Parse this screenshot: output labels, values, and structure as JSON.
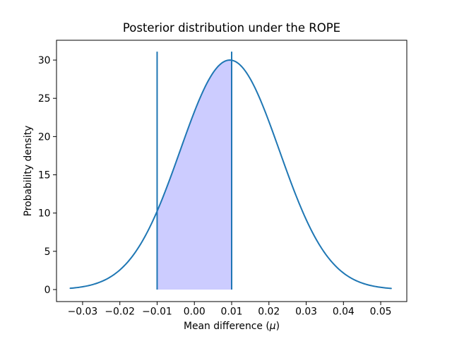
{
  "figure": {
    "title": "Posterior distribution under the ROPE",
    "xlabel_parts": [
      "Mean difference (",
      "μ",
      ")"
    ],
    "ylabel": "Probability density"
  },
  "chart_data": {
    "type": "line",
    "title": "Posterior distribution under the ROPE",
    "xlabel": "Mean difference (μ)",
    "ylabel": "Probability density",
    "grid": false,
    "legend_position": "none",
    "xlim": [
      -0.037,
      0.057
    ],
    "ylim": [
      -1.57,
      32.59
    ],
    "x_ticks": [
      -0.03,
      -0.02,
      -0.01,
      0.0,
      0.01,
      0.02,
      0.03,
      0.04,
      0.05
    ],
    "x_tick_labels": [
      "−0.03",
      "−0.02",
      "−0.01",
      "0.00",
      "0.01",
      "0.02",
      "0.03",
      "0.04",
      "0.05"
    ],
    "y_ticks": [
      0,
      5,
      10,
      15,
      20,
      25,
      30
    ],
    "y_tick_labels": [
      "0",
      "5",
      "10",
      "15",
      "20",
      "25",
      "30"
    ],
    "series": [
      {
        "name": "posterior-density",
        "type": "line",
        "color": "#1f77b4",
        "line_width": 2,
        "distribution": "normal",
        "mean": 0.0095,
        "sd": 0.0133,
        "peak_density": 30.0,
        "x_range": [
          -0.0333,
          0.0528
        ],
        "x_at_ticks": [
          -0.03,
          -0.02,
          -0.01,
          0.0,
          0.01,
          0.02,
          0.03,
          0.04,
          0.05
        ],
        "density_at_ticks": [
          0.36,
          2.56,
          10.24,
          23.24,
          29.98,
          21.97,
          9.15,
          2.16,
          0.29
        ]
      }
    ],
    "rope": {
      "lower": -0.01,
      "upper": 0.01,
      "vline_color": "#1f77b4",
      "vline_width": 2,
      "vline_ymin": 0,
      "vline_ymax": 31.1,
      "fill_color": "#0000ff",
      "fill_opacity": 0.2
    },
    "axes_color": "#000000",
    "background_color": "#ffffff"
  }
}
